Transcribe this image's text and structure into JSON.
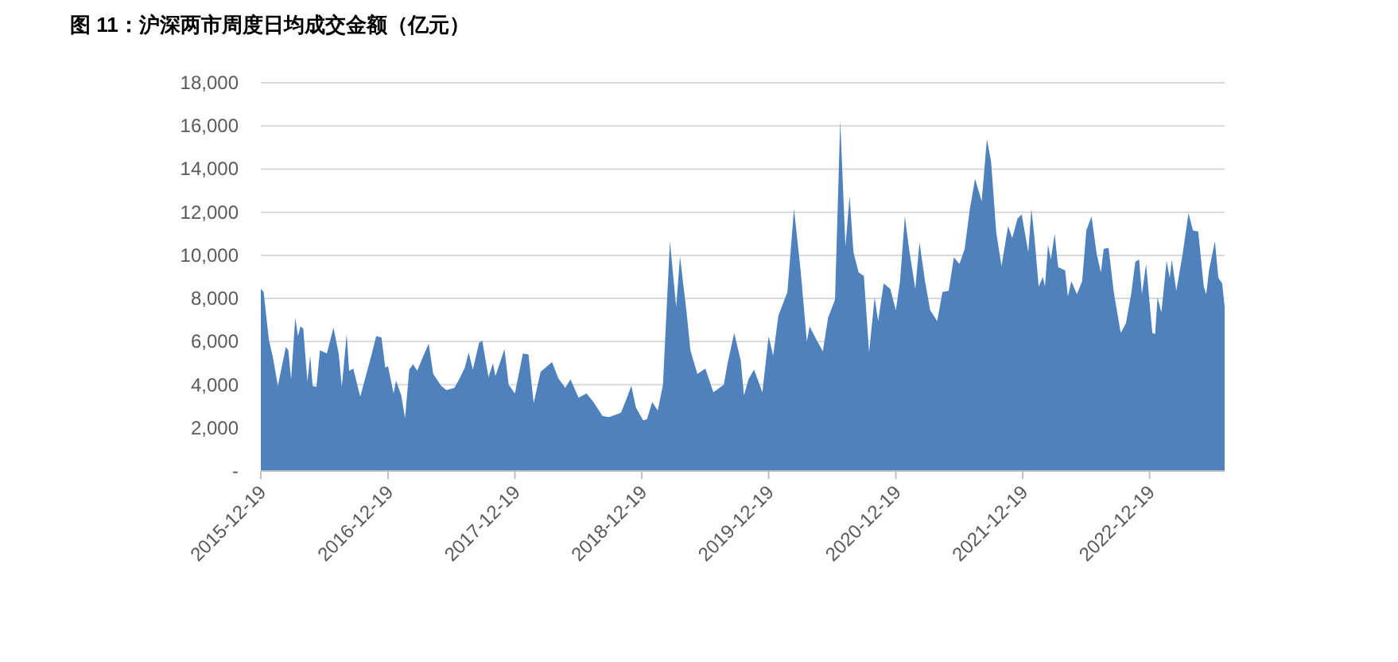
{
  "chart_data": {
    "type": "area",
    "title": "图 11：沪深两市周度日均成交金额（亿元）",
    "x": [
      "2015-12-19",
      "2015-12-27",
      "2016-01-11",
      "2016-01-23",
      "2016-02-06",
      "2016-02-29",
      "2016-03-07",
      "2016-03-15",
      "2016-03-27",
      "2016-04-04",
      "2016-04-11",
      "2016-04-19",
      "2016-05-01",
      "2016-05-09",
      "2016-05-16",
      "2016-05-27",
      "2016-06-06",
      "2016-06-26",
      "2016-07-15",
      "2016-07-30",
      "2016-08-08",
      "2016-08-22",
      "2016-08-29",
      "2016-09-10",
      "2016-09-30",
      "2016-10-31",
      "2016-11-15",
      "2016-11-30",
      "2016-12-11",
      "2016-12-19",
      "2017-01-04",
      "2017-01-11",
      "2017-01-26",
      "2017-02-06",
      "2017-02-18",
      "2017-03-01",
      "2017-03-13",
      "2017-03-28",
      "2017-04-15",
      "2017-04-28",
      "2017-05-21",
      "2017-06-05",
      "2017-06-28",
      "2017-07-13",
      "2017-07-28",
      "2017-08-08",
      "2017-08-20",
      "2017-09-07",
      "2017-09-16",
      "2017-10-04",
      "2017-10-17",
      "2017-10-24",
      "2017-11-19",
      "2017-12-01",
      "2017-12-19",
      "2018-01-11",
      "2018-01-27",
      "2018-02-11",
      "2018-03-03",
      "2018-04-05",
      "2018-04-23",
      "2018-05-13",
      "2018-05-28",
      "2018-06-20",
      "2018-07-13",
      "2018-08-02",
      "2018-08-28",
      "2018-09-16",
      "2018-10-20",
      "2018-11-04",
      "2018-11-19",
      "2018-12-02",
      "2018-12-23",
      "2019-01-03",
      "2019-01-18",
      "2019-02-03",
      "2019-02-18",
      "2019-03-10",
      "2019-03-28",
      "2019-04-08",
      "2019-04-27",
      "2019-05-08",
      "2019-05-28",
      "2019-06-20",
      "2019-07-13",
      "2019-08-12",
      "2019-08-23",
      "2019-09-11",
      "2019-09-30",
      "2019-10-09",
      "2019-10-22",
      "2019-11-07",
      "2019-12-01",
      "2019-12-19",
      "2020-01-01",
      "2020-01-16",
      "2020-02-11",
      "2020-03-01",
      "2020-03-20",
      "2020-04-07",
      "2020-04-15",
      "2020-05-04",
      "2020-05-23",
      "2020-06-07",
      "2020-06-27",
      "2020-07-12",
      "2020-07-27",
      "2020-08-08",
      "2020-08-19",
      "2020-09-03",
      "2020-09-18",
      "2020-10-03",
      "2020-10-19",
      "2020-10-29",
      "2020-11-14",
      "2020-12-03",
      "2020-12-19",
      "2020-12-31",
      "2021-01-14",
      "2021-01-26",
      "2021-02-13",
      "2021-02-25",
      "2021-03-13",
      "2021-03-28",
      "2021-04-17",
      "2021-05-02",
      "2021-05-20",
      "2021-06-04",
      "2021-06-20",
      "2021-07-05",
      "2021-07-20",
      "2021-08-04",
      "2021-08-23",
      "2021-09-07",
      "2021-09-19",
      "2021-10-04",
      "2021-10-19",
      "2021-11-07",
      "2021-11-19",
      "2021-12-04",
      "2021-12-16",
      "2022-01-04",
      "2022-01-13",
      "2022-01-22",
      "2022-02-03",
      "2022-02-15",
      "2022-02-21",
      "2022-03-02",
      "2022-03-10",
      "2022-03-21",
      "2022-03-31",
      "2022-04-20",
      "2022-04-28",
      "2022-05-08",
      "2022-05-24",
      "2022-06-08",
      "2022-06-20",
      "2022-07-05",
      "2022-07-20",
      "2022-08-01",
      "2022-08-09",
      "2022-08-23",
      "2022-09-07",
      "2022-09-27",
      "2022-10-12",
      "2022-10-27",
      "2022-11-08",
      "2022-11-19",
      "2022-11-27",
      "2022-12-09",
      "2022-12-27",
      "2023-01-04",
      "2023-01-11",
      "2023-01-22",
      "2023-02-06",
      "2023-02-15",
      "2023-02-21",
      "2023-03-06",
      "2023-03-24",
      "2023-04-10",
      "2023-04-23",
      "2023-05-08",
      "2023-05-24",
      "2023-05-31",
      "2023-06-08",
      "2023-06-25",
      "2023-07-05",
      "2023-07-16",
      "2023-07-23"
    ],
    "series": [
      {
        "color": "#4f81bd",
        "values": [
          8450,
          8300,
          6100,
          5250,
          3950,
          5750,
          5600,
          4250,
          7100,
          6250,
          6700,
          6600,
          4150,
          5350,
          3950,
          3900,
          5600,
          5450,
          6650,
          5450,
          3900,
          6350,
          4650,
          4750,
          3450,
          5300,
          6250,
          6200,
          4800,
          4850,
          3600,
          4200,
          3500,
          2450,
          4700,
          4950,
          4650,
          5250,
          5900,
          4500,
          3950,
          3750,
          3850,
          4300,
          4800,
          5500,
          4700,
          5950,
          6050,
          4350,
          5000,
          4400,
          5650,
          4000,
          3600,
          5450,
          5400,
          3150,
          4600,
          5050,
          4300,
          3850,
          4250,
          3400,
          3600,
          3200,
          2550,
          2500,
          2700,
          3300,
          3950,
          2950,
          2350,
          2400,
          3200,
          2800,
          4000,
          10650,
          7600,
          9950,
          7350,
          5600,
          4500,
          4750,
          3650,
          4000,
          5000,
          6400,
          5100,
          3500,
          4250,
          4700,
          3650,
          6250,
          5350,
          7200,
          8300,
          12150,
          9300,
          6000,
          6700,
          6100,
          5550,
          7100,
          7950,
          16250,
          10400,
          12750,
          10150,
          9200,
          9050,
          5500,
          8050,
          6950,
          8700,
          8450,
          7450,
          8800,
          11800,
          10300,
          8450,
          10600,
          8800,
          7450,
          6950,
          8300,
          8350,
          9900,
          9600,
          10300,
          12150,
          13550,
          12500,
          15400,
          14350,
          11050,
          9500,
          11350,
          10800,
          11700,
          11900,
          10150,
          12150,
          10800,
          8550,
          9000,
          8550,
          10500,
          9800,
          11000,
          9450,
          9300,
          8100,
          8800,
          8200,
          8800,
          11150,
          11800,
          10050,
          9200,
          10300,
          10350,
          8300,
          6400,
          6850,
          8200,
          9700,
          9800,
          8200,
          9600,
          6400,
          6350,
          8050,
          7350,
          9750,
          8950,
          9800,
          8350,
          10050,
          11950,
          11150,
          11100,
          8550,
          8200,
          9300,
          10650,
          8950,
          8700,
          7600
        ]
      }
    ],
    "xlim": [
      "2015-12-19",
      "2023-07-23"
    ],
    "xticks": [
      "2015-12-19",
      "2016-12-19",
      "2017-12-19",
      "2018-12-19",
      "2019-12-19",
      "2020-12-19",
      "2021-12-19",
      "2022-12-19"
    ],
    "ylim": [
      0,
      18000
    ],
    "yticks": [
      {
        "value": 0,
        "label": "-"
      },
      {
        "value": 2000,
        "label": "2,000"
      },
      {
        "value": 4000,
        "label": "4,000"
      },
      {
        "value": 6000,
        "label": "6,000"
      },
      {
        "value": 8000,
        "label": "8,000"
      },
      {
        "value": 10000,
        "label": "10,000"
      },
      {
        "value": 12000,
        "label": "12,000"
      },
      {
        "value": 14000,
        "label": "14,000"
      },
      {
        "value": 16000,
        "label": "16,000"
      },
      {
        "value": 18000,
        "label": "18,000"
      }
    ],
    "grid": "y"
  }
}
